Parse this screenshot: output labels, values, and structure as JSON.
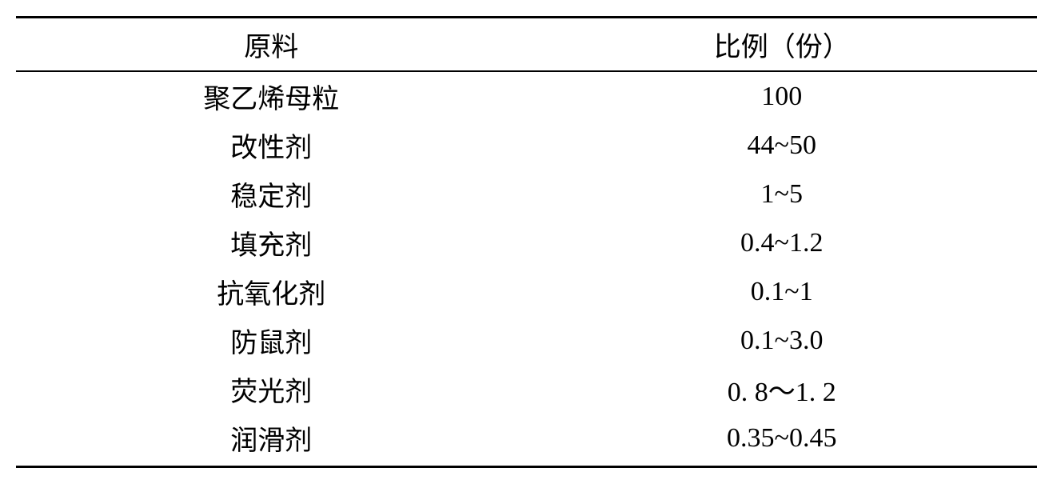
{
  "table": {
    "type": "table",
    "background_color": "#ffffff",
    "text_color": "#000000",
    "border_color": "#000000",
    "font_family": "SimSun",
    "font_size_pt": 26,
    "header_font_weight": "normal",
    "border_top_width": 3,
    "header_border_bottom_width": 2,
    "border_bottom_width": 3,
    "columns": [
      {
        "label": "原料",
        "width_pct": 50,
        "align": "center"
      },
      {
        "label": "比例（份）",
        "width_pct": 50,
        "align": "center"
      }
    ],
    "rows": [
      {
        "material": "聚乙烯母粒",
        "proportion": "100"
      },
      {
        "material": "改性剂",
        "proportion": "44~50"
      },
      {
        "material": "稳定剂",
        "proportion": "1~5"
      },
      {
        "material": "填充剂",
        "proportion": "0.4~1.2"
      },
      {
        "material": "抗氧化剂",
        "proportion": "0.1~1"
      },
      {
        "material": "防鼠剂",
        "proportion": "0.1~3.0"
      },
      {
        "material": "荧光剂",
        "proportion": "0. 8～1. 2"
      },
      {
        "material": "润滑剂",
        "proportion": "0.35~0.45"
      }
    ]
  }
}
